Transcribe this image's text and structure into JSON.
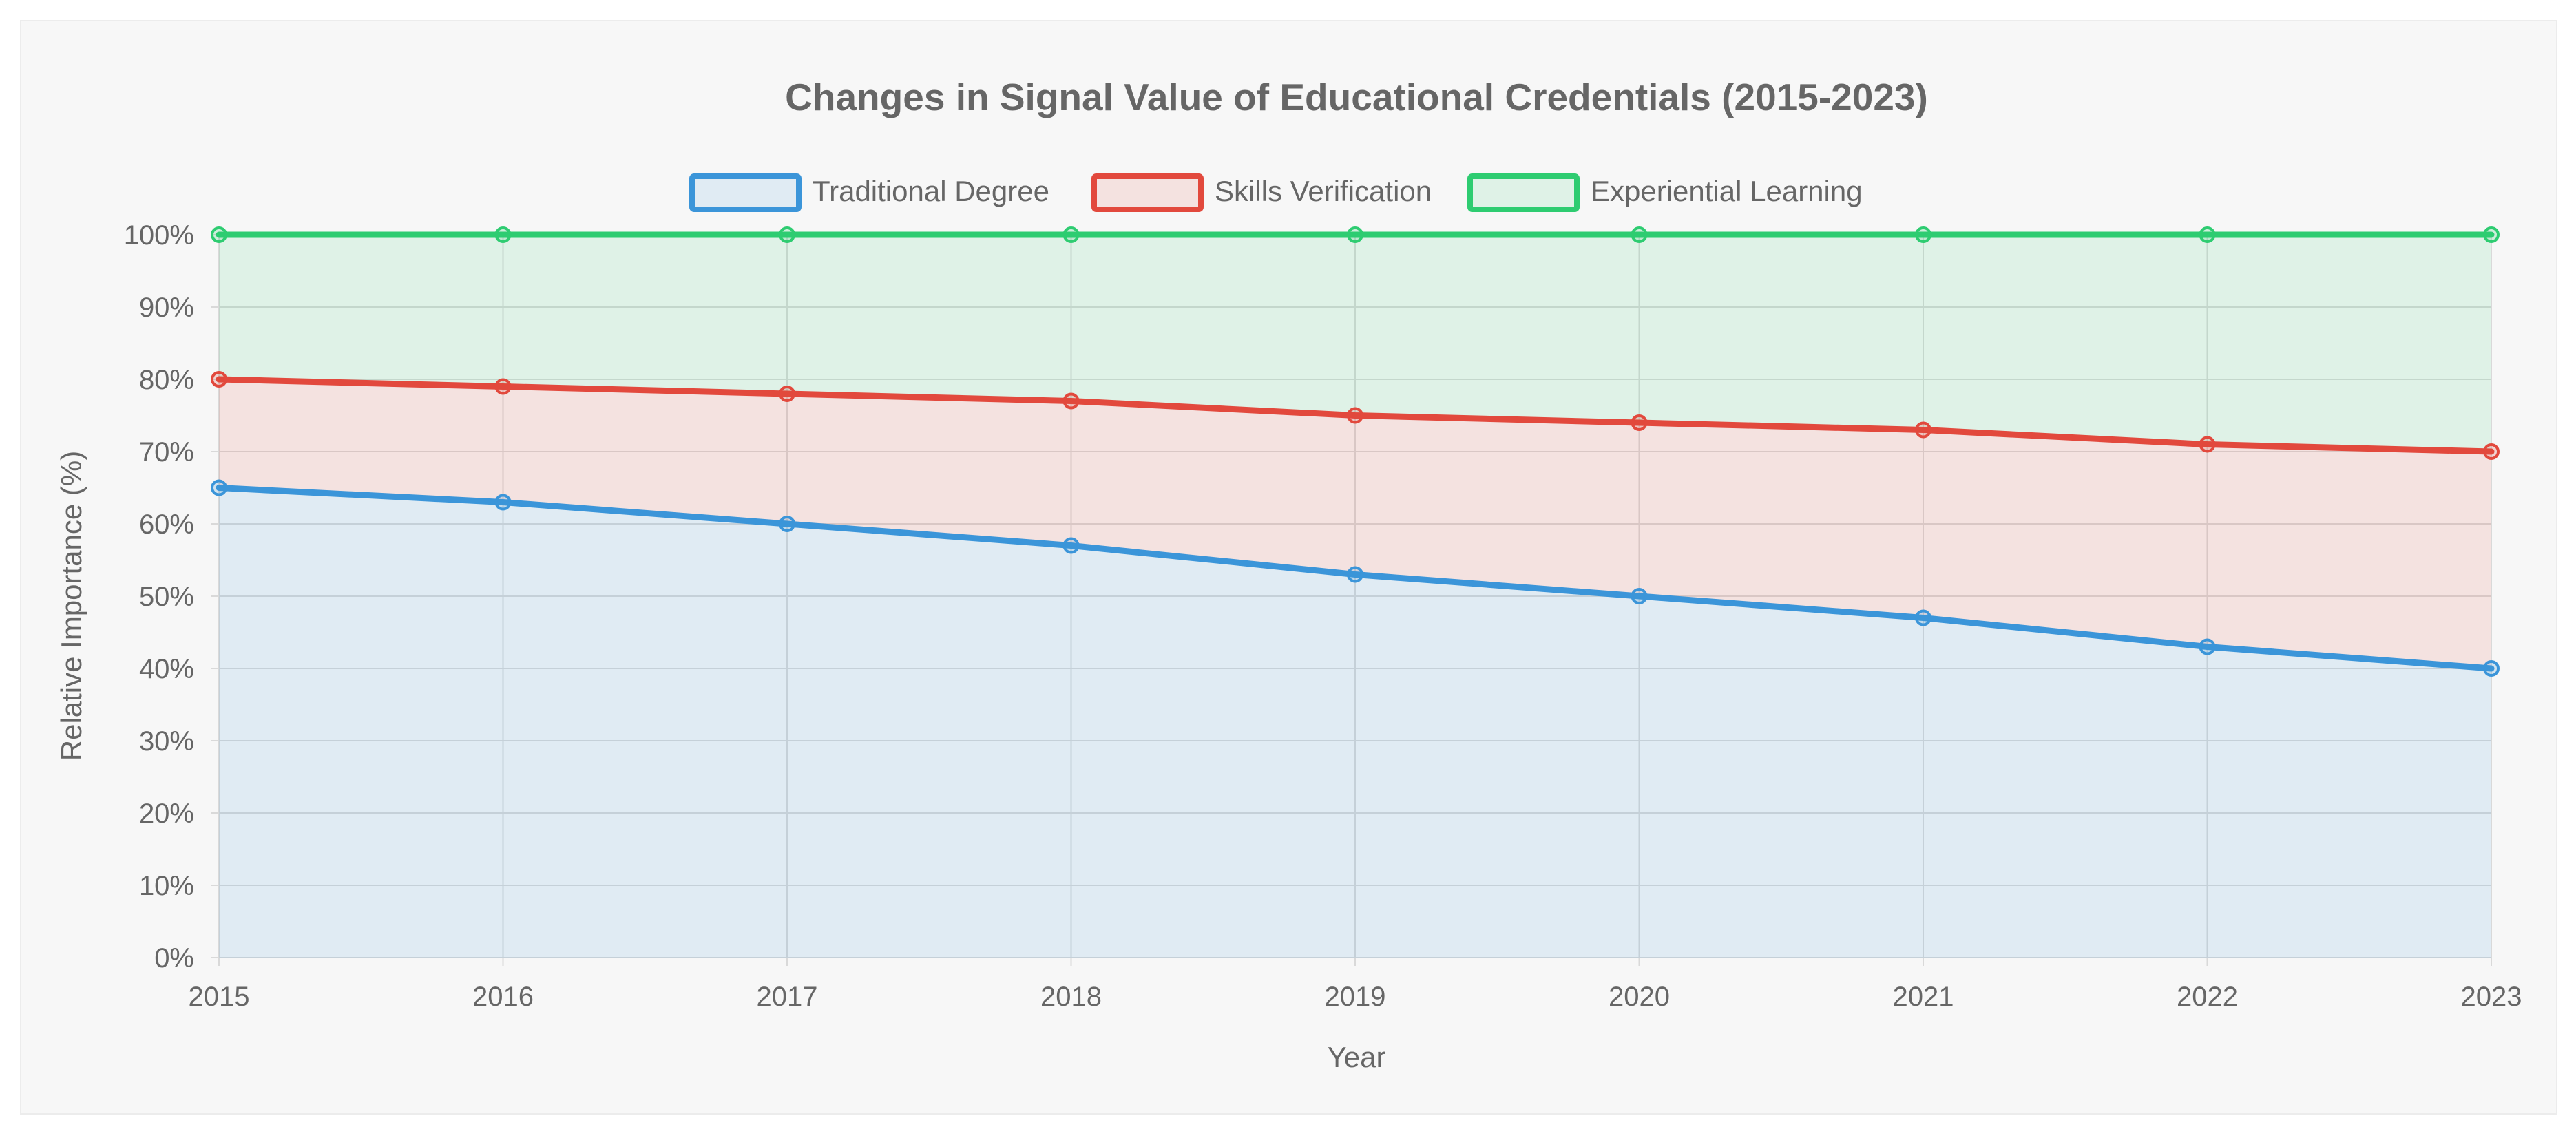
{
  "chart_data": {
    "type": "area",
    "stacked": true,
    "title": "Changes in Signal Value of Educational Credentials (2015-2023)",
    "xlabel": "Year",
    "ylabel": "Relative Importance (%)",
    "x": [
      "2015",
      "2016",
      "2017",
      "2018",
      "2019",
      "2020",
      "2021",
      "2022",
      "2023"
    ],
    "ylim": [
      0,
      100
    ],
    "yticks": [
      "0%",
      "10%",
      "20%",
      "30%",
      "40%",
      "50%",
      "60%",
      "70%",
      "80%",
      "90%",
      "100%"
    ],
    "grid": true,
    "legend_position": "top",
    "series": [
      {
        "name": "Traditional Degree",
        "color": "#3b95d9",
        "values": [
          65,
          63,
          60,
          57,
          53,
          50,
          47,
          43,
          40
        ]
      },
      {
        "name": "Skills Verification",
        "color": "#e2493d",
        "values": [
          15,
          16,
          18,
          20,
          22,
          24,
          26,
          28,
          30
        ]
      },
      {
        "name": "Experiential Learning",
        "color": "#2ecc71",
        "values": [
          20,
          21,
          22,
          23,
          25,
          26,
          27,
          29,
          30
        ]
      }
    ]
  }
}
